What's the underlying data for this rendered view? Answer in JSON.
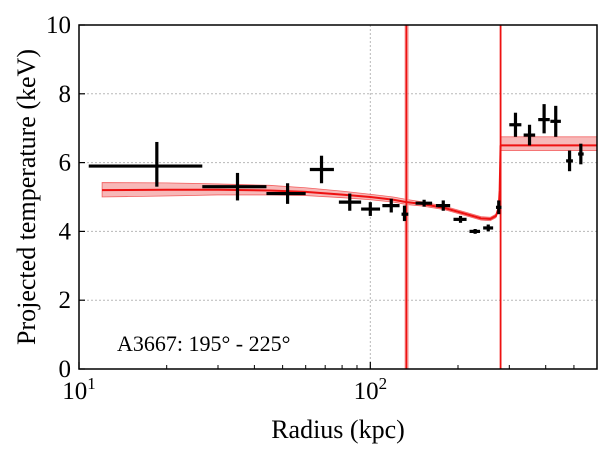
{
  "chart_data": {
    "type": "scatter",
    "annotation": "A3667: 195° - 225°",
    "xlabel": "Radius (kpc)",
    "ylabel": "Projected temperature (keV)",
    "xscale": "log",
    "xlim": [
      10,
      600
    ],
    "ylim": [
      0,
      10
    ],
    "grid": true,
    "x_tick_labels": [
      {
        "value": 10,
        "base": "10",
        "exp": "1"
      },
      {
        "value": 100,
        "base": "10",
        "exp": "2"
      }
    ],
    "y_ticks": [
      0,
      2,
      4,
      6,
      8,
      10
    ],
    "series": [
      {
        "kind": "errorbar",
        "color": "#000000",
        "points": [
          {
            "x": 18.5,
            "xlo": 10.8,
            "xhi": 26.5,
            "y": 5.9,
            "ylo": 5.3,
            "yhi": 6.6
          },
          {
            "x": 35,
            "xlo": 26.5,
            "xhi": 44,
            "y": 5.3,
            "ylo": 4.9,
            "yhi": 5.7
          },
          {
            "x": 52,
            "xlo": 44,
            "xhi": 60,
            "y": 5.1,
            "ylo": 4.8,
            "yhi": 5.4
          },
          {
            "x": 68,
            "xlo": 62,
            "xhi": 75,
            "y": 5.8,
            "ylo": 5.4,
            "yhi": 6.2
          },
          {
            "x": 85,
            "xlo": 78,
            "xhi": 93,
            "y": 4.85,
            "ylo": 4.6,
            "yhi": 5.1
          },
          {
            "x": 100,
            "xlo": 93,
            "xhi": 108,
            "y": 4.65,
            "ylo": 4.45,
            "yhi": 4.85
          },
          {
            "x": 118,
            "xlo": 110,
            "xhi": 126,
            "y": 4.75,
            "ylo": 4.55,
            "yhi": 4.95
          },
          {
            "x": 131,
            "xlo": 128,
            "xhi": 135,
            "y": 4.5,
            "ylo": 4.3,
            "yhi": 4.75
          },
          {
            "x": 153,
            "xlo": 143,
            "xhi": 163,
            "y": 4.82,
            "ylo": 4.72,
            "yhi": 4.92
          },
          {
            "x": 178,
            "xlo": 168,
            "xhi": 188,
            "y": 4.75,
            "ylo": 4.6,
            "yhi": 4.9
          },
          {
            "x": 204,
            "xlo": 193,
            "xhi": 214,
            "y": 4.35,
            "ylo": 4.25,
            "yhi": 4.45
          },
          {
            "x": 229,
            "xlo": 219,
            "xhi": 238,
            "y": 4.0,
            "ylo": 3.93,
            "yhi": 4.07
          },
          {
            "x": 254,
            "xlo": 244,
            "xhi": 264,
            "y": 4.1,
            "ylo": 4.0,
            "yhi": 4.2
          },
          {
            "x": 276,
            "xlo": 270,
            "xhi": 282,
            "y": 4.7,
            "ylo": 4.5,
            "yhi": 4.9
          },
          {
            "x": 315,
            "xlo": 300,
            "xhi": 330,
            "y": 7.1,
            "ylo": 6.75,
            "yhi": 7.45
          },
          {
            "x": 352,
            "xlo": 336,
            "xhi": 368,
            "y": 6.8,
            "ylo": 6.5,
            "yhi": 7.1
          },
          {
            "x": 395,
            "xlo": 377,
            "xhi": 413,
            "y": 7.25,
            "ylo": 6.85,
            "yhi": 7.7
          },
          {
            "x": 433,
            "xlo": 415,
            "xhi": 451,
            "y": 7.2,
            "ylo": 6.75,
            "yhi": 7.65
          },
          {
            "x": 483,
            "xlo": 470,
            "xhi": 496,
            "y": 6.05,
            "ylo": 5.75,
            "yhi": 6.35
          },
          {
            "x": 528,
            "xlo": 517,
            "xhi": 540,
            "y": 6.25,
            "ylo": 5.95,
            "yhi": 6.55
          }
        ]
      },
      {
        "kind": "model",
        "color": "#ee1111",
        "band_color": "#f4a0a0",
        "curve": [
          {
            "x": 12,
            "y": 5.2,
            "lo": 5.0,
            "hi": 5.42
          },
          {
            "x": 20,
            "y": 5.21,
            "lo": 5.03,
            "hi": 5.41
          },
          {
            "x": 30,
            "y": 5.21,
            "lo": 5.06,
            "hi": 5.38
          },
          {
            "x": 45,
            "y": 5.19,
            "lo": 5.06,
            "hi": 5.34
          },
          {
            "x": 60,
            "y": 5.15,
            "lo": 5.04,
            "hi": 5.27
          },
          {
            "x": 80,
            "y": 5.07,
            "lo": 4.98,
            "hi": 5.17
          },
          {
            "x": 100,
            "y": 5.0,
            "lo": 4.92,
            "hi": 5.08
          },
          {
            "x": 120,
            "y": 4.92,
            "lo": 4.85,
            "hi": 5.0
          },
          {
            "x": 133,
            "y": 4.85,
            "lo": 4.78,
            "hi": 4.93
          },
          {
            "x": 150,
            "y": 4.8,
            "lo": 4.74,
            "hi": 4.86
          },
          {
            "x": 180,
            "y": 4.68,
            "lo": 4.63,
            "hi": 4.73
          },
          {
            "x": 210,
            "y": 4.52,
            "lo": 4.47,
            "hi": 4.57
          },
          {
            "x": 240,
            "y": 4.38,
            "lo": 4.33,
            "hi": 4.43
          },
          {
            "x": 258,
            "y": 4.36,
            "lo": 4.31,
            "hi": 4.41
          },
          {
            "x": 270,
            "y": 4.45,
            "lo": 4.4,
            "hi": 4.5
          },
          {
            "x": 276,
            "y": 4.7,
            "lo": 4.65,
            "hi": 4.75
          },
          {
            "x": 278,
            "y": 5.2,
            "lo": 5.15,
            "hi": 5.25
          }
        ],
        "outer_level": {
          "x_start": 280,
          "x_end": 600,
          "y": 6.5,
          "lo": 6.35,
          "hi": 6.75
        },
        "vertical_lines": [
          {
            "x": 133,
            "x_lo": 131,
            "x_hi": 135.5
          },
          {
            "x": 280,
            "x_lo": 279.5,
            "x_hi": 280.5
          }
        ]
      }
    ]
  }
}
